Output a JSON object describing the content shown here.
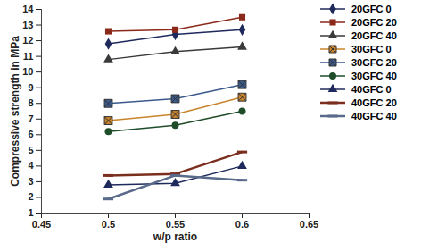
{
  "chart_data": {
    "type": "line",
    "x_label": "w/p ratio",
    "y_label": "Compressive strength in MPa",
    "x": [
      0.5,
      0.55,
      0.6
    ],
    "xlim": [
      0.45,
      0.65
    ],
    "xticks": [
      0.45,
      0.5,
      0.55,
      0.6,
      0.65
    ],
    "ylim": [
      1,
      14
    ],
    "yticks": [
      1,
      2,
      3,
      4,
      5,
      6,
      7,
      8,
      9,
      10,
      11,
      12,
      13,
      14
    ],
    "grid": false,
    "legend": "right",
    "series": [
      {
        "name": "20GFC 0",
        "color": "#1f2a5c",
        "marker": "diamond",
        "values": [
          11.8,
          12.4,
          12.7
        ]
      },
      {
        "name": "20GFC 20",
        "color": "#8b2a1a",
        "marker": "square",
        "values": [
          12.6,
          12.7,
          13.5
        ]
      },
      {
        "name": "20GFC 40",
        "color": "#3a3a3a",
        "marker": "triangle",
        "values": [
          10.8,
          11.3,
          11.6
        ]
      },
      {
        "name": "30GFC 0",
        "color": "#c8842c",
        "marker": "square-x",
        "values": [
          6.9,
          7.3,
          8.4
        ]
      },
      {
        "name": "30GFC 20",
        "color": "#3a5a8c",
        "marker": "square-x",
        "values": [
          8.0,
          8.3,
          9.2
        ]
      },
      {
        "name": "30GFC 40",
        "color": "#1f4d2a",
        "marker": "circle",
        "values": [
          6.2,
          6.6,
          7.5
        ]
      },
      {
        "name": "40GFC 0",
        "color": "#1f2a5c",
        "marker": "triangle",
        "values": [
          2.8,
          2.9,
          4.0
        ]
      },
      {
        "name": "40GFC 20",
        "color": "#7a2e1e",
        "marker": "dash",
        "values": [
          3.4,
          3.5,
          4.9
        ]
      },
      {
        "name": "40GFC 40",
        "color": "#5a6a8a",
        "marker": "dash",
        "values": [
          1.9,
          3.4,
          3.1
        ]
      }
    ]
  }
}
